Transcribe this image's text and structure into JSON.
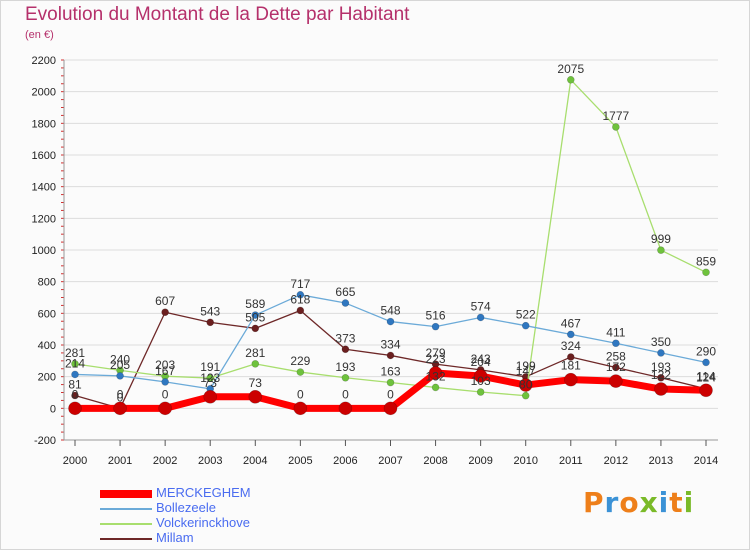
{
  "header": {
    "title": "Evolution du Montant de la Dette par Habitant",
    "unit": "(en €)"
  },
  "logo": {
    "text": "Proxiti",
    "letters": [
      "P",
      "r",
      "o",
      "x",
      "i",
      "t",
      "i"
    ],
    "colors": [
      "#ee7f1a",
      "#3b92d6",
      "#ee7f1a",
      "#7aba28",
      "#3b92d6",
      "#ee7f1a",
      "#7aba28"
    ]
  },
  "chart_data": {
    "type": "line",
    "title": "Evolution du Montant de la Dette par Habitant",
    "ylabel": "(en €)",
    "xlabel": "",
    "ylim": [
      -200,
      2200
    ],
    "yticks": [
      -200,
      0,
      200,
      400,
      600,
      800,
      1000,
      1200,
      1400,
      1600,
      1800,
      2000,
      2200
    ],
    "x": [
      "2000",
      "2001",
      "2002",
      "2003",
      "2004",
      "2005",
      "2006",
      "2007",
      "2008",
      "2009",
      "2010",
      "2011",
      "2012",
      "2013",
      "2014"
    ],
    "grid": "horizontal",
    "legend_position": "bottom-left",
    "series": [
      {
        "name": "MERCKEGHEM",
        "color": "#ff0000",
        "point_color": "#cc0000",
        "line_width": 7,
        "point_radius": 6.5,
        "values": [
          0,
          0,
          0,
          73,
          73,
          0,
          0,
          0,
          223,
          204,
          147,
          181,
          172,
          122,
          114
        ],
        "labels": [
          "0",
          "0",
          "0",
          "73",
          "73",
          "0",
          "0",
          "0",
          "223",
          "204",
          "147",
          "181",
          "172",
          "122",
          "114"
        ]
      },
      {
        "name": "Bollezeele",
        "color": "#6baad8",
        "point_color": "#2f77c0",
        "line_width": 1.3,
        "point_radius": 3.5,
        "values": [
          214,
          205,
          167,
          123,
          589,
          717,
          665,
          548,
          516,
          574,
          522,
          467,
          411,
          350,
          290
        ],
        "labels": [
          "214",
          "205",
          "167",
          "123",
          "589",
          "717",
          "665",
          "548",
          "516",
          "574",
          "522",
          "467",
          "411",
          "350",
          "290"
        ]
      },
      {
        "name": "Volckerinckhove",
        "color": "#a8de6e",
        "point_color": "#6ec23c",
        "line_width": 1.3,
        "point_radius": 3.5,
        "values": [
          281,
          240,
          203,
          191,
          281,
          229,
          193,
          163,
          132,
          103,
          80,
          2075,
          1777,
          999,
          859
        ],
        "labels": [
          "281",
          "240",
          "203",
          "191",
          "281",
          "229",
          "193",
          "163",
          "132",
          "103",
          "80",
          "2075",
          "1777",
          "999",
          "859"
        ]
      },
      {
        "name": "Millam",
        "color": "#6e2828",
        "point_color": "#6b1f1f",
        "line_width": 1.3,
        "point_radius": 3.5,
        "values": [
          81,
          0,
          607,
          543,
          505,
          618,
          373,
          334,
          279,
          243,
          199,
          324,
          258,
          193,
          124
        ],
        "labels": [
          "81",
          "0",
          "607",
          "543",
          "505",
          "618",
          "373",
          "334",
          "279",
          "243",
          "199",
          "324",
          "258",
          "193",
          "124"
        ]
      }
    ]
  }
}
